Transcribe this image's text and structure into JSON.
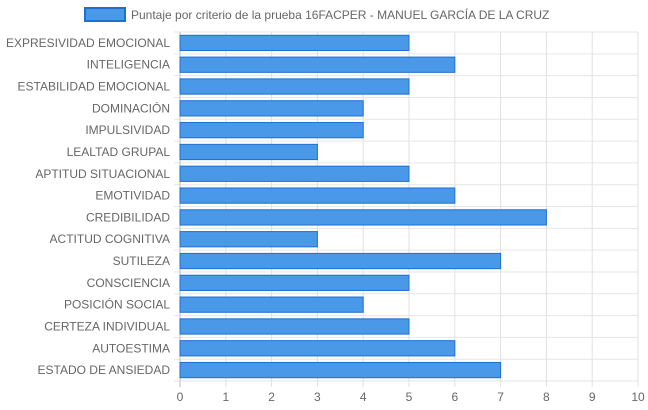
{
  "chart_data": {
    "type": "bar",
    "orientation": "horizontal",
    "categories": [
      "EXPRESIVIDAD EMOCIONAL",
      "INTELIGENCIA",
      "ESTABILIDAD EMOCIONAL",
      "DOMINACIÓN",
      "IMPULSIVIDAD",
      "LEALTAD GRUPAL",
      "APTITUD SITUACIONAL",
      "EMOTIVIDAD",
      "CREDIBILIDAD",
      "ACTITUD COGNITIVA",
      "SUTILEZA",
      "CONSCIENCIA",
      "POSICIÓN SOCIAL",
      "CERTEZA INDIVIDUAL",
      "AUTOESTIMA",
      "ESTADO DE ANSIEDAD"
    ],
    "series": [
      {
        "name": "Puntaje por criterio de la prueba 16FACPER - MANUEL GARCÍA DE LA CRUZ",
        "values": [
          5,
          6,
          5,
          4,
          4,
          3,
          5,
          6,
          8,
          3,
          7,
          5,
          4,
          5,
          6,
          7
        ],
        "color": "#4a98e8",
        "border_color": "#1f6fd1"
      }
    ],
    "xlim": [
      0,
      10
    ],
    "x_ticks": [
      "0",
      "1",
      "2",
      "3",
      "4",
      "5",
      "6",
      "7",
      "8",
      "9",
      "10"
    ],
    "grid": true,
    "legend_position": "top"
  }
}
